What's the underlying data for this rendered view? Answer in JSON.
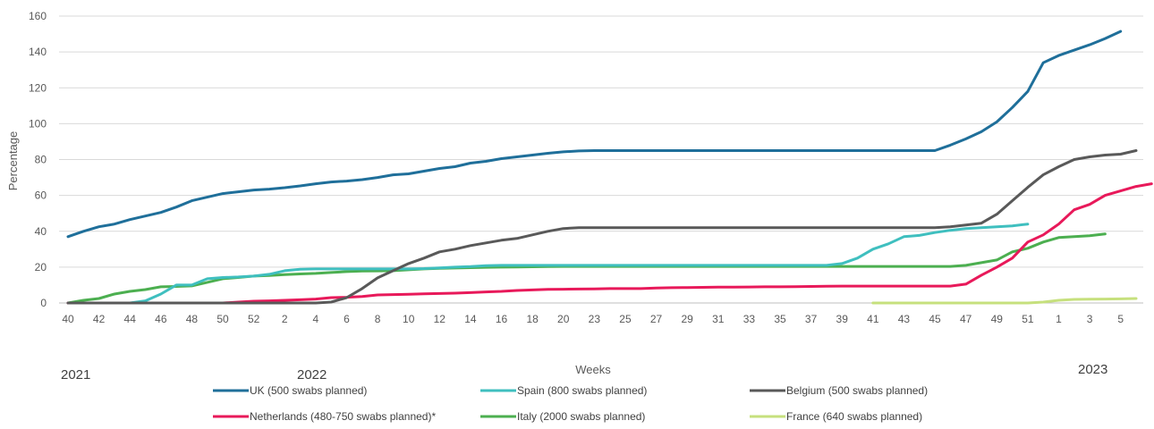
{
  "chart_data": {
    "type": "line",
    "xlabel": "Weeks",
    "ylabel": "Percentage",
    "ylim": [
      0,
      160
    ],
    "yticks": [
      0,
      20,
      40,
      60,
      80,
      100,
      120,
      140,
      160
    ],
    "grid": "horizontal",
    "legend_placement": "bottom",
    "x_categories": [
      "40",
      "41",
      "42",
      "43",
      "44",
      "45",
      "46",
      "47",
      "48",
      "49",
      "50",
      "51",
      "52",
      "1",
      "2",
      "3",
      "4",
      "5",
      "6",
      "7",
      "8",
      "9",
      "10",
      "11",
      "12",
      "13",
      "14",
      "15",
      "16",
      "17",
      "18",
      "19",
      "20",
      "21",
      "22",
      "23",
      "24",
      "25",
      "26",
      "27",
      "28",
      "29",
      "30",
      "31",
      "32",
      "33",
      "34",
      "35",
      "36",
      "37",
      "38",
      "39",
      "40",
      "41",
      "42",
      "43",
      "44",
      "45",
      "46",
      "47",
      "48",
      "49",
      "50",
      "51",
      "52",
      "1",
      "2",
      "3",
      "4",
      "5"
    ],
    "x_tick_labels": [
      "40",
      "42",
      "44",
      "46",
      "48",
      "50",
      "52",
      "2",
      "4",
      "6",
      "8",
      "10",
      "12",
      "14",
      "16",
      "18",
      "20",
      "23",
      "25",
      "27",
      "29",
      "31",
      "33",
      "35",
      "37",
      "39",
      "41",
      "43",
      "45",
      "47",
      "49",
      "51",
      "1",
      "3",
      "5"
    ],
    "year_labels": [
      "2021",
      "2022",
      "2023"
    ],
    "series": [
      {
        "name": "UK (500 swabs planned)",
        "color": "#1f6f9a",
        "start_index": 0,
        "values": [
          37,
          40,
          42.5,
          44,
          46.5,
          48.5,
          50.5,
          53.5,
          57,
          59,
          61,
          62,
          63,
          63.5,
          64.3,
          65.3,
          66.5,
          67.5,
          68,
          68.8,
          70,
          71.5,
          72,
          73.5,
          75,
          76,
          78,
          79,
          80.5,
          81.5,
          82.5,
          83.5,
          84.3,
          84.8,
          85,
          85,
          85,
          85,
          85,
          85,
          85,
          85,
          85,
          85,
          85,
          85,
          85,
          85,
          85,
          85,
          85,
          85,
          85,
          85,
          85,
          85,
          85,
          88,
          91.5,
          95.5,
          101,
          109,
          118,
          134,
          138,
          141,
          144,
          147.5,
          151.5
        ]
      },
      {
        "name": "Spain (800 swabs planned)",
        "color": "#3fbfbf",
        "start_index": 4,
        "values": [
          0,
          1.2,
          5,
          10,
          10,
          13.5,
          14.2,
          14.5,
          15,
          16,
          18,
          18.8,
          19,
          19,
          19,
          19,
          19,
          19,
          19,
          19.2,
          19.6,
          20,
          20.3,
          20.8,
          21,
          21,
          21,
          21,
          21,
          21,
          21,
          21,
          21,
          21,
          21,
          21,
          21,
          21,
          21,
          21,
          21,
          21,
          21,
          21,
          21,
          21,
          22,
          25,
          30,
          33,
          37,
          37.7,
          39.3,
          40.5,
          41.5,
          42,
          42.5,
          43,
          44
        ]
      },
      {
        "name": "Belgium (500 swabs planned)",
        "color": "#595959",
        "start_index": 0,
        "values": [
          0,
          0,
          0,
          0,
          0,
          0,
          0,
          0,
          0,
          0,
          0,
          0,
          0,
          0,
          0,
          0,
          0,
          0.5,
          3,
          8,
          14,
          18,
          22,
          25,
          28.5,
          30,
          32,
          33.5,
          35,
          36,
          38,
          40,
          41.5,
          42,
          42,
          42,
          42,
          42,
          42,
          42,
          42,
          42,
          42,
          42,
          42,
          42,
          42,
          42,
          42,
          42,
          42,
          42,
          42,
          42,
          42,
          42,
          42,
          42.5,
          43.5,
          44.5,
          49.5,
          57,
          64.5,
          71.5,
          76,
          80,
          81.5,
          82.5,
          83,
          85
        ]
      },
      {
        "name": "Netherlands (480-750 swabs planned)*",
        "color": "#e8195a",
        "start_index": 0,
        "values": [
          0,
          0,
          0,
          0,
          0,
          0,
          0,
          0,
          0,
          0,
          0,
          0.5,
          1,
          1.2,
          1.5,
          1.8,
          2.2,
          3,
          3.2,
          3.6,
          4.5,
          4.7,
          4.9,
          5.1,
          5.3,
          5.5,
          5.8,
          6.2,
          6.5,
          7,
          7.3,
          7.6,
          7.7,
          7.8,
          7.9,
          8,
          8,
          8,
          8.3,
          8.5,
          8.6,
          8.7,
          8.8,
          8.8,
          8.9,
          9,
          9,
          9.1,
          9.2,
          9.3,
          9.4,
          9.4,
          9.4,
          9.4,
          9.4,
          9.4,
          9.4,
          9.4,
          10.5,
          15.5,
          20,
          25,
          34,
          38,
          44,
          52,
          55,
          60,
          62.5,
          65,
          66.5
        ]
      },
      {
        "name": "Italy (2000 swabs planned)",
        "color": "#4caf50",
        "start_index": 0,
        "values": [
          0,
          1.5,
          2.5,
          5,
          6.5,
          7.5,
          9,
          9.2,
          9.5,
          11.5,
          13.5,
          14.2,
          15,
          15.3,
          15.8,
          16.2,
          16.5,
          17,
          17.5,
          17.8,
          17.9,
          18,
          18.5,
          19,
          19.3,
          19.5,
          19.7,
          19.9,
          20,
          20.1,
          20.2,
          20.3,
          20.4,
          20.4,
          20.4,
          20.4,
          20.4,
          20.4,
          20.4,
          20.4,
          20.4,
          20.4,
          20.4,
          20.4,
          20.4,
          20.4,
          20.4,
          20.4,
          20.4,
          20.4,
          20.4,
          20.4,
          20.4,
          20.4,
          20.4,
          20.4,
          20.4,
          20.4,
          21,
          22.5,
          24,
          28.5,
          30.5,
          34,
          36.5,
          37,
          37.5,
          38.5
        ]
      },
      {
        "name": "France (640 swabs planned)",
        "color": "#c6e07d",
        "start_index": 52,
        "values": [
          0,
          0,
          0,
          0,
          0,
          0,
          0,
          0,
          0,
          0,
          0,
          0.5,
          1.5,
          2,
          2.1,
          2.2,
          2.3,
          2.5
        ]
      }
    ]
  }
}
